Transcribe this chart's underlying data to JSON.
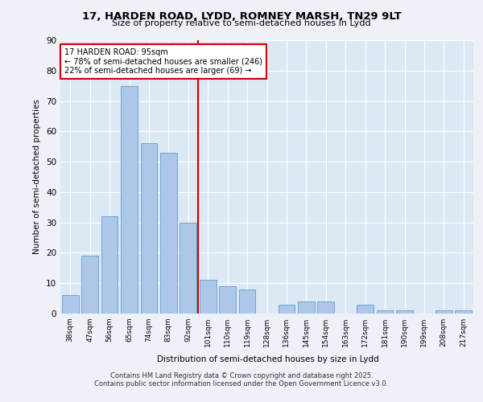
{
  "title1": "17, HARDEN ROAD, LYDD, ROMNEY MARSH, TN29 9LT",
  "title2": "Size of property relative to semi-detached houses in Lydd",
  "xlabel": "Distribution of semi-detached houses by size in Lydd",
  "ylabel": "Number of semi-detached properties",
  "categories": [
    "38sqm",
    "47sqm",
    "56sqm",
    "65sqm",
    "74sqm",
    "83sqm",
    "92sqm",
    "101sqm",
    "110sqm",
    "119sqm",
    "128sqm",
    "136sqm",
    "145sqm",
    "154sqm",
    "163sqm",
    "172sqm",
    "181sqm",
    "190sqm",
    "199sqm",
    "208sqm",
    "217sqm"
  ],
  "values": [
    6,
    19,
    32,
    75,
    56,
    53,
    30,
    11,
    9,
    8,
    0,
    3,
    4,
    4,
    0,
    3,
    1,
    1,
    0,
    1,
    1
  ],
  "bar_color": "#aec6e8",
  "bar_edge_color": "#5a9fd4",
  "vline_x": 6.5,
  "vline_color": "#cc0000",
  "annotation_title": "17 HARDEN ROAD: 95sqm",
  "annotation_line1": "← 78% of semi-detached houses are smaller (246)",
  "annotation_line2": "22% of semi-detached houses are larger (69) →",
  "box_color": "#cc0000",
  "ylim": [
    0,
    90
  ],
  "yticks": [
    0,
    10,
    20,
    30,
    40,
    50,
    60,
    70,
    80,
    90
  ],
  "footer1": "Contains HM Land Registry data © Crown copyright and database right 2025.",
  "footer2": "Contains public sector information licensed under the Open Government Licence v3.0.",
  "bg_color": "#dce9f5",
  "fig_bg_color": "#eef2f8"
}
